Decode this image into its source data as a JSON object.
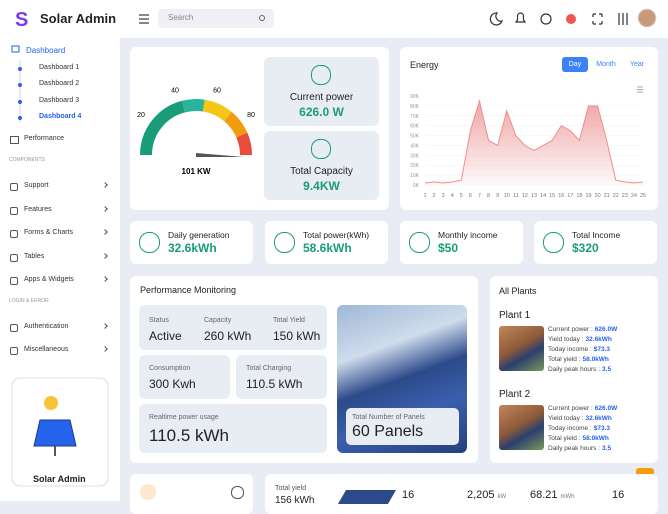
{
  "header": {
    "brand": "Solar Admin",
    "search_placeholder": "Search"
  },
  "sidebar": {
    "dashboard": "Dashboard",
    "sub": [
      "Dashboard 1",
      "Dashboard 2",
      "Dashboard 3",
      "Dashboard 4"
    ],
    "performance": "Performance",
    "sections": [
      {
        "title": "COMPONENTS",
        "items": [
          "Support",
          "Features",
          "Forms & Charts",
          "Tables",
          "Apps & Widgets"
        ]
      },
      {
        "title": "LOGIN & ERROR",
        "items": [
          "Authentication",
          "Miscellaneous"
        ]
      }
    ],
    "card": "Solar Admin"
  },
  "gauge": {
    "lim": [
      0,
      100
    ],
    "ticks": [
      20,
      40,
      60,
      80
    ],
    "reading": "101 KW"
  },
  "current_power": {
    "label": "Current power",
    "value": "626.0 W"
  },
  "total_capacity": {
    "label": "Total Capacity",
    "value": "9.4KW"
  },
  "chart_data": {
    "type": "area",
    "title": "Energy",
    "buttons": [
      "Day",
      "Month",
      "Year"
    ],
    "color": "#ec8f8f",
    "x": [
      1,
      2,
      3,
      4,
      5,
      6,
      7,
      8,
      9,
      10,
      11,
      12,
      13,
      14,
      15,
      16,
      17,
      18,
      19,
      20,
      21,
      22,
      23,
      24,
      25
    ],
    "values": [
      2,
      3,
      2,
      3,
      5,
      55,
      85,
      45,
      40,
      75,
      50,
      40,
      35,
      40,
      45,
      60,
      55,
      45,
      80,
      80,
      45,
      5,
      3,
      2,
      3
    ],
    "xlim": [
      1,
      25
    ],
    "xticks": [
      1,
      2,
      3,
      4,
      5,
      6,
      7,
      8,
      9,
      10,
      11,
      12,
      13,
      14,
      15,
      16,
      17,
      18,
      19,
      20,
      21,
      22,
      23,
      24,
      25
    ],
    "ylim": [
      0,
      90
    ],
    "yticks": [
      {
        "value": 0,
        "label": "0K"
      },
      {
        "value": 10,
        "label": "10K"
      },
      {
        "value": 20,
        "label": "20K"
      },
      {
        "value": 30,
        "label": "30K"
      },
      {
        "value": 40,
        "label": "40K"
      },
      {
        "value": 50,
        "label": "50K"
      },
      {
        "value": 60,
        "label": "60K"
      },
      {
        "value": 70,
        "label": "70K"
      },
      {
        "value": 80,
        "label": "80K"
      },
      {
        "value": 90,
        "label": "90K"
      }
    ]
  },
  "stats": [
    {
      "label": "Daily generation",
      "value": "32.6kWh"
    },
    {
      "label": "Total power(kWh)",
      "value": "58.6kWh"
    },
    {
      "label": "Monthly income",
      "value": "$50"
    },
    {
      "label": "Total Income",
      "value": "$320"
    }
  ],
  "performance": {
    "title": "Performance Monitoring",
    "status": {
      "label": "Status",
      "value": "Active"
    },
    "capacity": {
      "label": "Capacity",
      "value": "260 kWh"
    },
    "total_yield": {
      "label": "Total Yield",
      "value": "150 kWh"
    },
    "consumption": {
      "label": "Consumption",
      "value": "300 Kwh"
    },
    "total_charging": {
      "label": "Total Charging",
      "value": "110.5 kWh"
    },
    "realtime": {
      "label": "Realtime power usage",
      "value": "110.5 kWh"
    },
    "panels": {
      "label": "Total Number of Panels",
      "value": "60 Panels"
    }
  },
  "plants": {
    "title": "All Plants",
    "list": [
      {
        "name": "Plant 1",
        "fields": [
          {
            "label": "Current power :",
            "value": "626.0W"
          },
          {
            "label": "Yield today :",
            "value": "32.6kWh"
          },
          {
            "label": "Today income :",
            "value": "$73.3"
          },
          {
            "label": "Total yield :",
            "value": "58.0kWh"
          },
          {
            "label": "Daily peak hours :",
            "value": "3.5"
          }
        ]
      },
      {
        "name": "Plant 2",
        "fields": [
          {
            "label": "Current power :",
            "value": "626.0W"
          },
          {
            "label": "Yield today :",
            "value": "32.6kWh"
          },
          {
            "label": "Today income :",
            "value": "$73.3"
          },
          {
            "label": "Total yield :",
            "value": "58.0kWh"
          },
          {
            "label": "Daily peak hours :",
            "value": "3.5"
          }
        ]
      }
    ]
  },
  "bottom": {
    "total_yield_label": "Total yield",
    "total_yield": "156 kWh",
    "stats": [
      {
        "value": "16"
      },
      {
        "value": "2,205",
        "unit": "kW"
      },
      {
        "value": "68.21",
        "unit": "mWh"
      },
      {
        "value": "16"
      }
    ]
  }
}
